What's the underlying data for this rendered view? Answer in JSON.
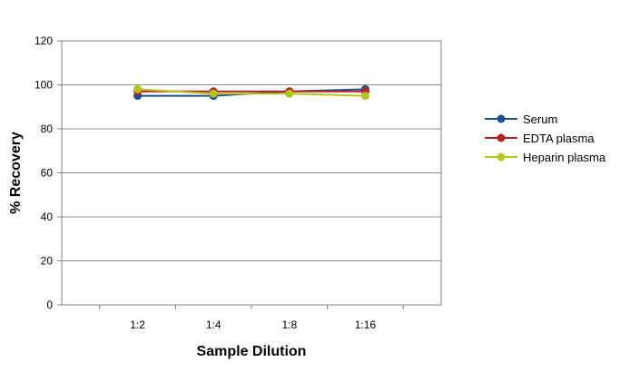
{
  "chart_data": {
    "type": "line",
    "title": "",
    "xlabel": "Sample Dilution",
    "ylabel": "% Recovery",
    "categories": [
      "1:2",
      "1:4",
      "1:8",
      "1:16"
    ],
    "ylim": [
      0,
      120
    ],
    "yticks": [
      0,
      20,
      40,
      60,
      80,
      100,
      120
    ],
    "grid": "horizontal",
    "legend_position": "right",
    "series": [
      {
        "name": "Serum",
        "color": "#1f4e8c",
        "values": [
          95,
          95,
          97,
          98
        ]
      },
      {
        "name": "EDTA plasma",
        "color": "#b22222",
        "values": [
          97,
          97,
          97,
          97
        ]
      },
      {
        "name": "Heparin plasma",
        "color": "#b5c21f",
        "values": [
          98,
          96,
          96,
          95
        ]
      }
    ]
  }
}
